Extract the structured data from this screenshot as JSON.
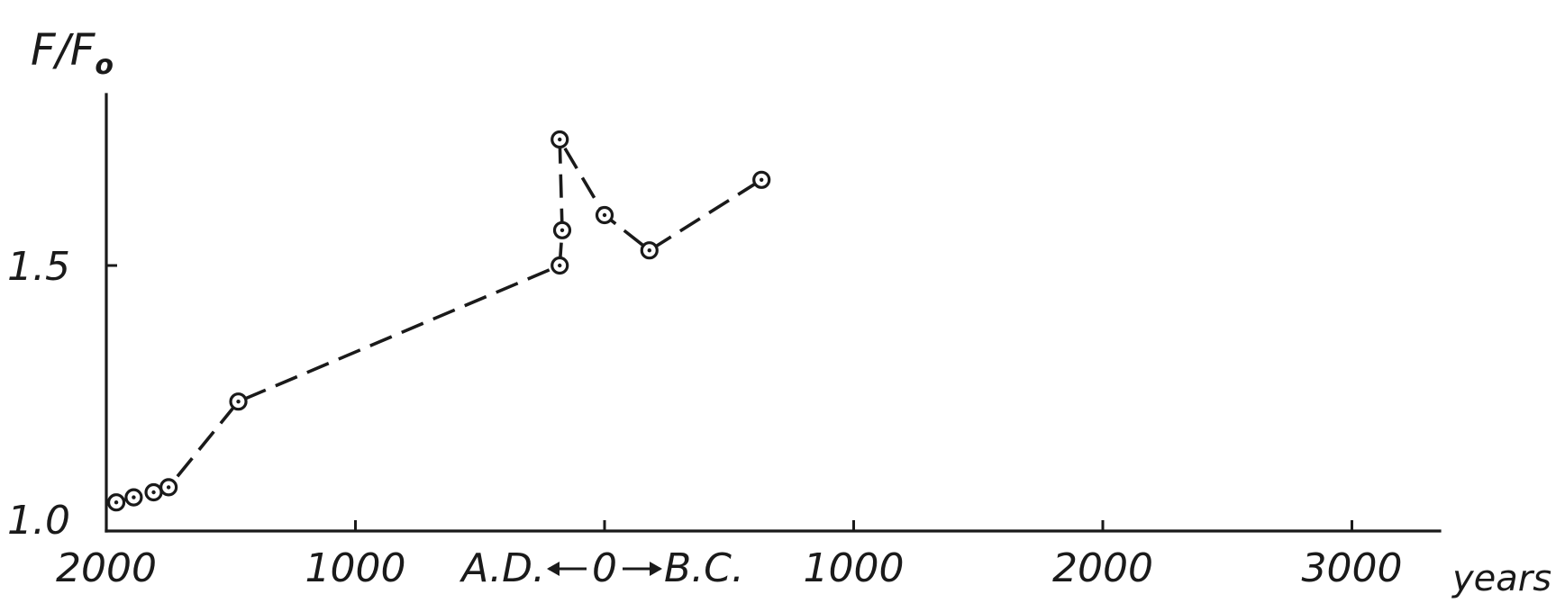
{
  "chart_data": {
    "type": "line",
    "ylabel": {
      "main": "F/F",
      "sub": "o"
    },
    "xlabel": "years",
    "xlim": [
      2000,
      -3300
    ],
    "ylim": [
      1.0,
      1.8
    ],
    "x_ticks": [
      {
        "value": 2000,
        "label": "2000"
      },
      {
        "value": 1000,
        "label": "1000"
      },
      {
        "value": 0,
        "label": "0"
      },
      {
        "value": -1000,
        "label": "1000"
      },
      {
        "value": -2000,
        "label": "2000"
      },
      {
        "value": -3000,
        "label": "3000"
      }
    ],
    "y_ticks": [
      {
        "value": 1.0,
        "label": "1.0"
      },
      {
        "value": 1.5,
        "label": "1.5"
      }
    ],
    "era_labels": {
      "ad": "A.D.",
      "bc": "B.C."
    },
    "grid": false,
    "series": [
      {
        "line_style": "dashed",
        "marker": "circle-dot",
        "x": [
          1960,
          1890,
          1810,
          1750,
          1470,
          180,
          170,
          180,
          0,
          -180,
          -630
        ],
        "y": [
          1.03,
          1.04,
          1.05,
          1.06,
          1.23,
          1.5,
          1.57,
          1.75,
          1.6,
          1.53,
          1.67
        ]
      }
    ]
  }
}
